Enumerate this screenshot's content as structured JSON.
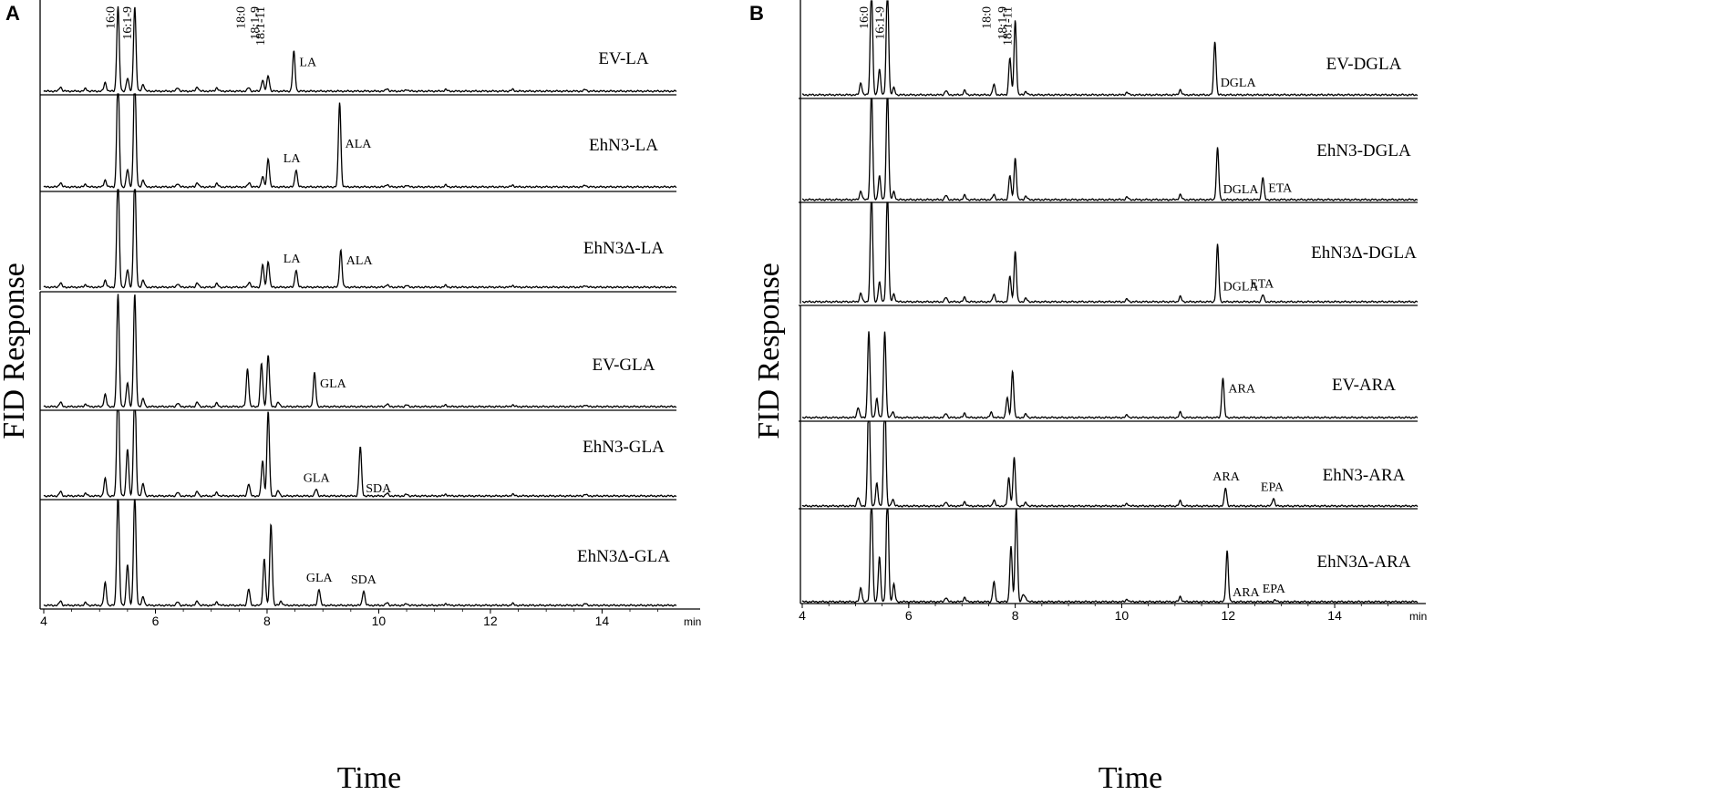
{
  "figure": {
    "panel_letters": [
      "A",
      "B"
    ],
    "y_axis_title": "FID Response",
    "x_axis_title": "Time",
    "x_unit": "min"
  },
  "chart_data": [
    {
      "type": "line",
      "panel": "A",
      "xlabel": "Time",
      "ylabel": "FID Response",
      "x_unit": "min",
      "xlim": [
        4,
        15.3
      ],
      "x_ticks": [
        4,
        6,
        8,
        10,
        12,
        14
      ],
      "baseline_peaks": [
        {
          "x": 4.3,
          "h": 0.05
        },
        {
          "x": 4.75,
          "h": 0.03
        },
        {
          "x": 6.4,
          "h": 0.04
        },
        {
          "x": 6.75,
          "h": 0.05
        },
        {
          "x": 7.1,
          "h": 0.04
        },
        {
          "x": 10.15,
          "h": 0.03
        },
        {
          "x": 10.5,
          "h": 0.02
        },
        {
          "x": 11.2,
          "h": 0.02
        },
        {
          "x": 12.4,
          "h": 0.02
        },
        {
          "x": 13.7,
          "h": 0.02
        }
      ],
      "traces": [
        {
          "name": "EV-LA",
          "peaks": [
            {
              "x": 5.1,
              "h": 0.1
            },
            {
              "x": 5.33,
              "h": 0.98,
              "label": "16:0",
              "label_rotate": true
            },
            {
              "x": 5.5,
              "h": 0.15
            },
            {
              "x": 5.63,
              "h": 0.98,
              "label": "16:1-9",
              "label_rotate": true
            },
            {
              "x": 5.78,
              "h": 0.08
            },
            {
              "x": 7.67,
              "h": 0.04,
              "label": "18:0",
              "label_rotate": true
            },
            {
              "x": 7.92,
              "h": 0.13,
              "label": "18:1-9",
              "label_rotate": true
            },
            {
              "x": 8.02,
              "h": 0.18,
              "label": "18:1-11",
              "label_rotate": true
            },
            {
              "x": 8.48,
              "h": 0.46,
              "label": "LA"
            }
          ]
        },
        {
          "name": "EhN3-LA",
          "peaks": [
            {
              "x": 5.1,
              "h": 0.08
            },
            {
              "x": 5.33,
              "h": 1.3
            },
            {
              "x": 5.5,
              "h": 0.2
            },
            {
              "x": 5.63,
              "h": 1.3
            },
            {
              "x": 5.78,
              "h": 0.08
            },
            {
              "x": 7.68,
              "h": 0.05
            },
            {
              "x": 7.92,
              "h": 0.12
            },
            {
              "x": 8.02,
              "h": 0.33
            },
            {
              "x": 8.52,
              "h": 0.2,
              "label": "LA"
            },
            {
              "x": 9.3,
              "h": 0.98,
              "label": "ALA"
            }
          ]
        },
        {
          "name": "EhN3Δ-LA",
          "peaks": [
            {
              "x": 5.1,
              "h": 0.08
            },
            {
              "x": 5.33,
              "h": 1.3
            },
            {
              "x": 5.5,
              "h": 0.2
            },
            {
              "x": 5.63,
              "h": 1.3
            },
            {
              "x": 5.78,
              "h": 0.08
            },
            {
              "x": 7.68,
              "h": 0.06
            },
            {
              "x": 7.92,
              "h": 0.26
            },
            {
              "x": 8.02,
              "h": 0.3
            },
            {
              "x": 8.52,
              "h": 0.2,
              "label": "LA"
            },
            {
              "x": 9.32,
              "h": 0.43,
              "label": "ALA"
            }
          ]
        },
        {
          "name": "EV-GLA",
          "peaks": [
            {
              "x": 5.1,
              "h": 0.14
            },
            {
              "x": 5.33,
              "h": 1.3
            },
            {
              "x": 5.5,
              "h": 0.28
            },
            {
              "x": 5.63,
              "h": 1.3
            },
            {
              "x": 5.78,
              "h": 0.09
            },
            {
              "x": 7.65,
              "h": 0.44
            },
            {
              "x": 7.9,
              "h": 0.5
            },
            {
              "x": 8.02,
              "h": 0.6
            },
            {
              "x": 8.2,
              "h": 0.05
            },
            {
              "x": 8.85,
              "h": 0.39,
              "label": "GLA"
            }
          ]
        },
        {
          "name": "EhN3-GLA",
          "peaks": [
            {
              "x": 5.1,
              "h": 0.2
            },
            {
              "x": 5.33,
              "h": 1.3
            },
            {
              "x": 5.5,
              "h": 0.55
            },
            {
              "x": 5.63,
              "h": 1.3
            },
            {
              "x": 5.78,
              "h": 0.14
            },
            {
              "x": 7.67,
              "h": 0.14
            },
            {
              "x": 7.92,
              "h": 0.41
            },
            {
              "x": 8.02,
              "h": 0.98
            },
            {
              "x": 8.2,
              "h": 0.06
            },
            {
              "x": 8.88,
              "h": 0.08,
              "label": "GLA"
            },
            {
              "x": 9.67,
              "h": 0.57,
              "label": "SDA"
            }
          ]
        },
        {
          "name": "EhN3Δ-GLA",
          "peaks": [
            {
              "x": 5.1,
              "h": 0.26
            },
            {
              "x": 5.33,
              "h": 1.3
            },
            {
              "x": 5.5,
              "h": 0.48
            },
            {
              "x": 5.63,
              "h": 1.3
            },
            {
              "x": 5.78,
              "h": 0.1
            },
            {
              "x": 7.67,
              "h": 0.19
            },
            {
              "x": 7.95,
              "h": 0.54
            },
            {
              "x": 8.07,
              "h": 0.94
            },
            {
              "x": 8.25,
              "h": 0.05
            },
            {
              "x": 8.93,
              "h": 0.19,
              "label": "GLA"
            },
            {
              "x": 9.73,
              "h": 0.17,
              "label": "SDA"
            }
          ]
        }
      ]
    },
    {
      "type": "line",
      "panel": "B",
      "xlabel": "Time",
      "ylabel": "FID Response",
      "x_unit": "min",
      "xlim": [
        4,
        15.3
      ],
      "x_ticks": [
        4,
        6,
        8,
        10,
        12,
        14
      ],
      "baseline_peaks": [
        {
          "x": 6.7,
          "h": 0.05
        },
        {
          "x": 7.05,
          "h": 0.05
        },
        {
          "x": 8.2,
          "h": 0.04
        },
        {
          "x": 10.1,
          "h": 0.03
        },
        {
          "x": 11.1,
          "h": 0.06
        }
      ],
      "traces": [
        {
          "name": "EV-DGLA",
          "peaks": [
            {
              "x": 5.1,
              "h": 0.14
            },
            {
              "x": 5.3,
              "h": 1.3,
              "label": "16:0",
              "label_rotate": true
            },
            {
              "x": 5.45,
              "h": 0.3
            },
            {
              "x": 5.6,
              "h": 1.3,
              "label": "16:1-9",
              "label_rotate": true
            },
            {
              "x": 5.72,
              "h": 0.08
            },
            {
              "x": 7.6,
              "h": 0.12,
              "label": "18:0",
              "label_rotate": true
            },
            {
              "x": 7.9,
              "h": 0.43,
              "label": "18:1-9",
              "label_rotate": true
            },
            {
              "x": 8.0,
              "h": 0.86,
              "label": "18:1-11",
              "label_rotate": true
            },
            {
              "x": 11.75,
              "h": 0.62,
              "label": "DGLA"
            }
          ]
        },
        {
          "name": "EhN3-DGLA",
          "peaks": [
            {
              "x": 5.1,
              "h": 0.1
            },
            {
              "x": 5.3,
              "h": 1.3
            },
            {
              "x": 5.45,
              "h": 0.28
            },
            {
              "x": 5.6,
              "h": 1.3
            },
            {
              "x": 5.72,
              "h": 0.09
            },
            {
              "x": 7.6,
              "h": 0.06
            },
            {
              "x": 7.9,
              "h": 0.28
            },
            {
              "x": 8.0,
              "h": 0.48
            },
            {
              "x": 11.8,
              "h": 0.6,
              "label": "DGLA"
            },
            {
              "x": 12.65,
              "h": 0.26,
              "label": "ETA"
            }
          ]
        },
        {
          "name": "EhN3Δ-DGLA",
          "peaks": [
            {
              "x": 5.1,
              "h": 0.1
            },
            {
              "x": 5.3,
              "h": 1.3
            },
            {
              "x": 5.45,
              "h": 0.23
            },
            {
              "x": 5.6,
              "h": 1.3
            },
            {
              "x": 5.72,
              "h": 0.09
            },
            {
              "x": 7.6,
              "h": 0.09
            },
            {
              "x": 7.9,
              "h": 0.3
            },
            {
              "x": 8.0,
              "h": 0.58
            },
            {
              "x": 11.8,
              "h": 0.66,
              "label": "DGLA"
            },
            {
              "x": 12.65,
              "h": 0.08,
              "label": "ETA"
            }
          ]
        },
        {
          "name": "EV-ARA",
          "peaks": [
            {
              "x": 5.05,
              "h": 0.12
            },
            {
              "x": 5.25,
              "h": 1.0
            },
            {
              "x": 5.4,
              "h": 0.22
            },
            {
              "x": 5.55,
              "h": 1.0
            },
            {
              "x": 5.7,
              "h": 0.07
            },
            {
              "x": 7.55,
              "h": 0.06
            },
            {
              "x": 7.85,
              "h": 0.23
            },
            {
              "x": 7.95,
              "h": 0.54
            },
            {
              "x": 11.9,
              "h": 0.46,
              "label": "ARA"
            }
          ]
        },
        {
          "name": "EhN3-ARA",
          "peaks": [
            {
              "x": 5.05,
              "h": 0.1
            },
            {
              "x": 5.25,
              "h": 1.3
            },
            {
              "x": 5.4,
              "h": 0.26
            },
            {
              "x": 5.55,
              "h": 1.3
            },
            {
              "x": 5.7,
              "h": 0.08
            },
            {
              "x": 7.6,
              "h": 0.07
            },
            {
              "x": 7.88,
              "h": 0.33
            },
            {
              "x": 7.98,
              "h": 0.56
            },
            {
              "x": 11.95,
              "h": 0.21,
              "label": "ARA"
            },
            {
              "x": 12.85,
              "h": 0.09,
              "label": "EPA"
            }
          ]
        },
        {
          "name": "EhN3Δ-ARA",
          "peaks": [
            {
              "x": 5.1,
              "h": 0.16
            },
            {
              "x": 5.3,
              "h": 1.3
            },
            {
              "x": 5.45,
              "h": 0.52
            },
            {
              "x": 5.6,
              "h": 1.3
            },
            {
              "x": 5.72,
              "h": 0.2
            },
            {
              "x": 7.6,
              "h": 0.23
            },
            {
              "x": 7.92,
              "h": 0.64
            },
            {
              "x": 8.02,
              "h": 1.1
            },
            {
              "x": 8.15,
              "h": 0.08
            },
            {
              "x": 11.98,
              "h": 0.59,
              "label": "ARA"
            },
            {
              "x": 12.88,
              "h": 0.02,
              "label": "EPA"
            }
          ]
        }
      ]
    }
  ]
}
